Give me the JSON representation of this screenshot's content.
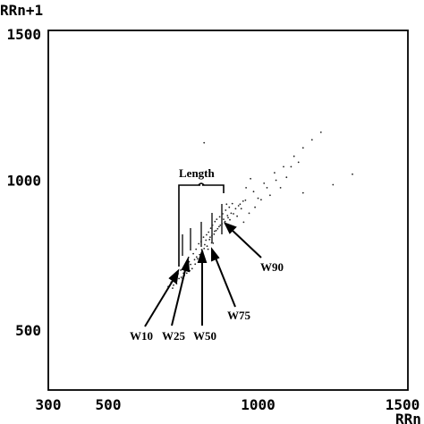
{
  "chart_data": {
    "type": "scatter",
    "title": "",
    "xlabel": "RRn",
    "ylabel": "RRn+1",
    "xlim": [
      300,
      1500
    ],
    "ylim": [
      300,
      1500
    ],
    "x_ticks": [
      {
        "value": 300,
        "label": "300"
      },
      {
        "value": 500,
        "label": "500"
      },
      {
        "value": 1000,
        "label": "1000"
      },
      {
        "value": 1500,
        "label": "1500"
      }
    ],
    "y_ticks": [
      {
        "value": 500,
        "label": "500"
      },
      {
        "value": 1000,
        "label": "1000"
      },
      {
        "value": 1500,
        "label": "1500"
      }
    ],
    "grid": false,
    "legend": "none",
    "series": [
      {
        "points": [
          [
            736,
            672
          ],
          [
            751,
            690
          ],
          [
            722,
            662
          ],
          [
            761,
            709
          ],
          [
            742,
            700
          ],
          [
            775,
            719
          ],
          [
            788,
            735
          ],
          [
            795,
            744
          ],
          [
            770,
            728
          ],
          [
            805,
            752
          ],
          [
            812,
            768
          ],
          [
            820,
            772
          ],
          [
            830,
            780
          ],
          [
            826,
            800
          ],
          [
            840,
            810
          ],
          [
            845,
            791
          ],
          [
            853,
            820
          ],
          [
            860,
            832
          ],
          [
            865,
            838
          ],
          [
            870,
            845
          ],
          [
            880,
            855
          ],
          [
            890,
            862
          ],
          [
            900,
            875
          ],
          [
            910,
            890
          ],
          [
            925,
            905
          ],
          [
            940,
            920
          ],
          [
            958,
            933
          ],
          [
            985,
            962
          ],
          [
            1020,
            990
          ],
          [
            1055,
            1025
          ],
          [
            1085,
            1045
          ],
          [
            1120,
            1080
          ],
          [
            1150,
            1108
          ],
          [
            1180,
            1135
          ],
          [
            1210,
            1160
          ],
          [
            1010,
            935
          ],
          [
            1040,
            950
          ],
          [
            1075,
            975
          ],
          [
            960,
            975
          ],
          [
            895,
            920
          ],
          [
            700,
            645
          ],
          [
            710,
            660
          ],
          [
            715,
            640
          ],
          [
            728,
            655
          ],
          [
            733,
            688
          ],
          [
            748,
            672
          ],
          [
            762,
            690
          ],
          [
            768,
            742
          ],
          [
            784,
            755
          ],
          [
            793,
            770
          ],
          [
            802,
            788
          ],
          [
            810,
            795
          ],
          [
            818,
            810
          ],
          [
            828,
            818
          ],
          [
            835,
            827
          ],
          [
            842,
            840
          ],
          [
            848,
            850
          ],
          [
            856,
            862
          ],
          [
            862,
            870
          ],
          [
            872,
            878
          ],
          [
            882,
            888
          ],
          [
            892,
            900
          ],
          [
            904,
            910
          ],
          [
            914,
            922
          ],
          [
            930,
            880
          ],
          [
            944,
            905
          ],
          [
            952,
            860
          ],
          [
            970,
            890
          ],
          [
            990,
            910
          ],
          [
            1000,
            940
          ],
          [
            1030,
            975
          ],
          [
            1060,
            1000
          ],
          [
            1095,
            1010
          ],
          [
            1110,
            1045
          ],
          [
            1135,
            1060
          ],
          [
            815,
            760
          ],
          [
            822,
            785
          ],
          [
            838,
            802
          ],
          [
            846,
            815
          ],
          [
            855,
            830
          ],
          [
            874,
            850
          ],
          [
            885,
            870
          ],
          [
            898,
            882
          ],
          [
            906,
            868
          ],
          [
            918,
            888
          ],
          [
            935,
            915
          ],
          [
            950,
            930
          ],
          [
            790,
            720
          ],
          [
            798,
            738
          ],
          [
            807,
            744
          ],
          [
            816,
            748
          ],
          [
            833,
            770
          ],
          [
            850,
            790
          ],
          [
            780,
            705
          ],
          [
            772,
            698
          ],
          [
            754,
            682
          ],
          [
            744,
            676
          ],
          [
            726,
            668
          ],
          [
            718,
            650
          ],
          [
            820,
            1125
          ],
          [
            975,
            1005
          ],
          [
            1150,
            958
          ],
          [
            1250,
            985
          ],
          [
            1315,
            1020
          ]
        ]
      }
    ],
    "annotations": [
      {
        "label": "Length",
        "x": 818,
        "y": 1012
      },
      {
        "label": "W10",
        "x": 623,
        "y": 487
      },
      {
        "label": "W25",
        "x": 736,
        "y": 487
      },
      {
        "label": "W50",
        "x": 837,
        "y": 487
      },
      {
        "label": "W75",
        "x": 930,
        "y": 557
      },
      {
        "label": "W90",
        "x": 1010,
        "y": 697
      }
    ]
  }
}
